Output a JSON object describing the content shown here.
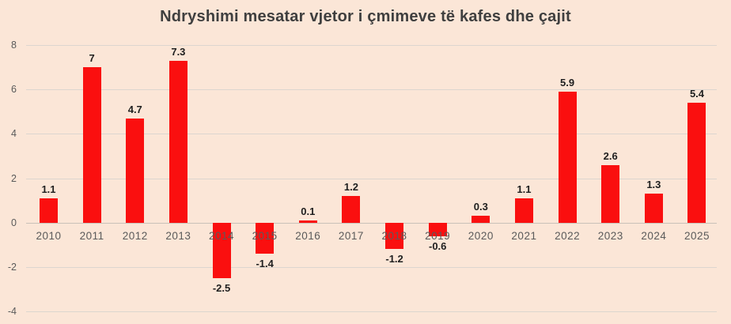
{
  "title": "Ndryshimi mesatar vjetor i çmimeve të kafes dhe çajit",
  "chart_data": {
    "type": "bar",
    "title": "Ndryshimi mesatar vjetor i çmimeve të kafes dhe çajit",
    "categories": [
      "2010",
      "2011",
      "2012",
      "2013",
      "2014",
      "2015",
      "2016",
      "2017",
      "2018",
      "2019",
      "2020",
      "2021",
      "2022",
      "2023",
      "2024",
      "2025"
    ],
    "values": [
      1.1,
      7,
      4.7,
      7.3,
      -2.5,
      -1.4,
      0.1,
      1.2,
      -1.2,
      -0.6,
      0.3,
      1.1,
      5.9,
      2.6,
      1.3,
      5.4
    ],
    "data_labels": [
      "1.1",
      "7",
      "4.7",
      "7.3",
      "-2.5",
      "-1.4",
      "0.1",
      "1.2",
      "-1.2",
      "-0.6",
      "0.3",
      "1.1",
      "5.9",
      "2.6",
      "1.3",
      "5.4"
    ],
    "xlabel": "",
    "ylabel": "",
    "y_ticks": [
      8,
      6,
      4,
      2,
      0,
      -2,
      -4
    ],
    "ylim": [
      -4,
      8
    ],
    "grid": true,
    "legend": false
  },
  "colors": {
    "background": "#fbe6d7",
    "bar": "#fa0f0f",
    "gridline": "#dcd6cf",
    "zero_line": "#c9c1b9",
    "title_text": "#3f3f3f",
    "axis_text": "#5a5a5a",
    "data_label_text": "#1f1f1f"
  }
}
